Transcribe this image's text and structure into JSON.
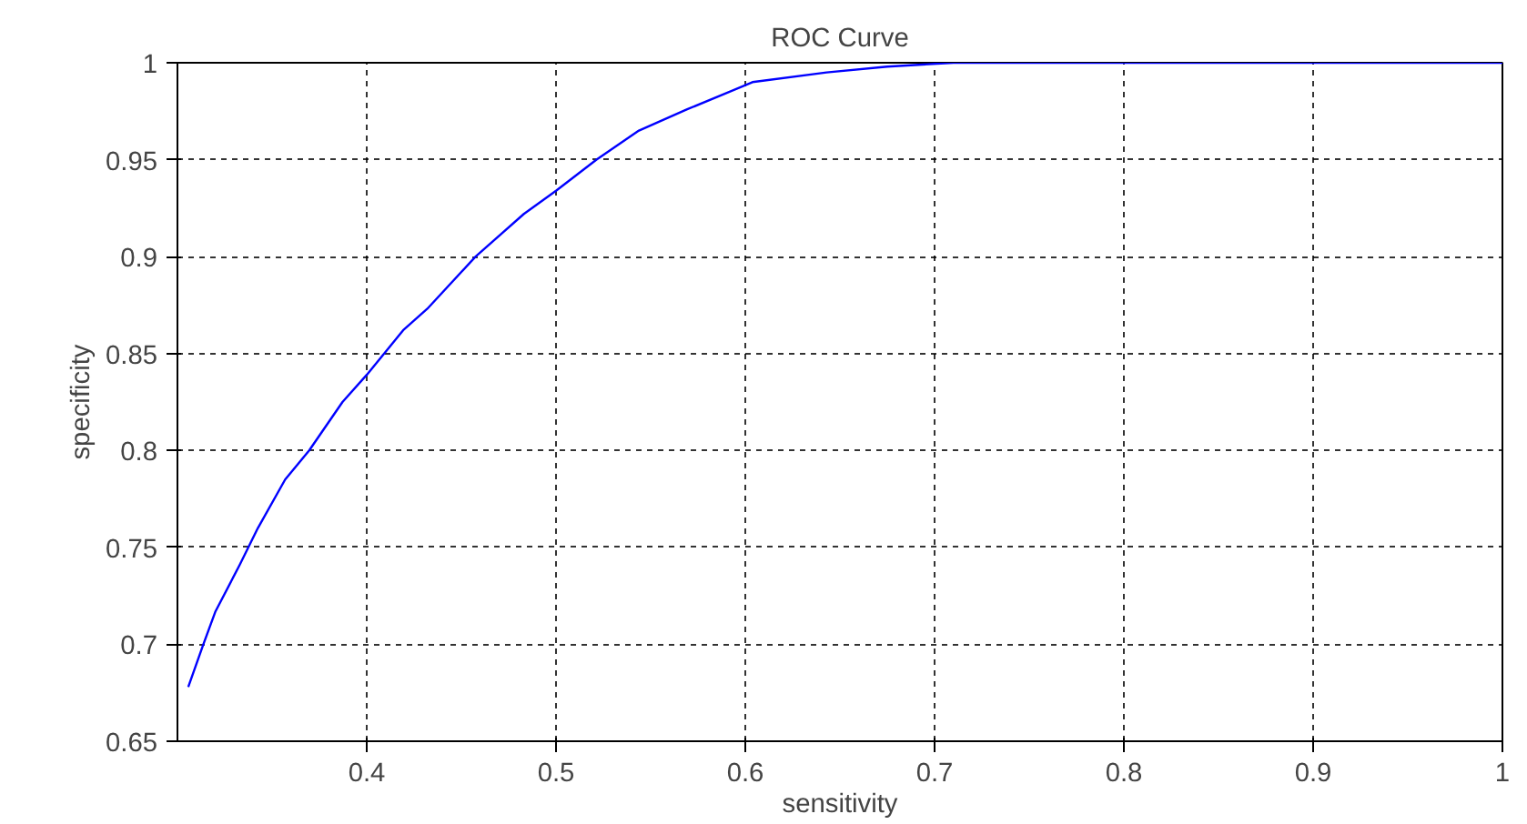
{
  "chart_data": {
    "type": "line",
    "title": "ROC Curve",
    "xlabel": "sensitivity",
    "ylabel": "specificity",
    "x": [
      0.3057,
      0.3137,
      0.3201,
      0.3329,
      0.3425,
      0.3569,
      0.3696,
      0.3872,
      0.4,
      0.4192,
      0.4319,
      0.4575,
      0.483,
      0.5,
      0.5214,
      0.5438,
      0.5693,
      0.5917,
      0.6038,
      0.643,
      0.675,
      0.71,
      1.0
    ],
    "series": [
      {
        "color": "#0000ff",
        "values": [
          0.678,
          0.7,
          0.717,
          0.741,
          0.76,
          0.785,
          0.8,
          0.825,
          0.839,
          0.862,
          0.873,
          0.9,
          0.922,
          0.934,
          0.95,
          0.965,
          0.976,
          0.985,
          0.99,
          0.995,
          0.998,
          1.0,
          1.0
        ]
      }
    ],
    "xlim": [
      0.3,
      1
    ],
    "ylim": [
      0.65,
      1
    ],
    "xticks": [
      0.4,
      0.5,
      0.6,
      0.7,
      0.8,
      0.9,
      1
    ],
    "yticks": [
      0.65,
      0.7,
      0.75,
      0.8,
      0.85,
      0.9,
      0.95,
      1
    ],
    "grid": true,
    "marker": "none",
    "line_style": "solid"
  }
}
